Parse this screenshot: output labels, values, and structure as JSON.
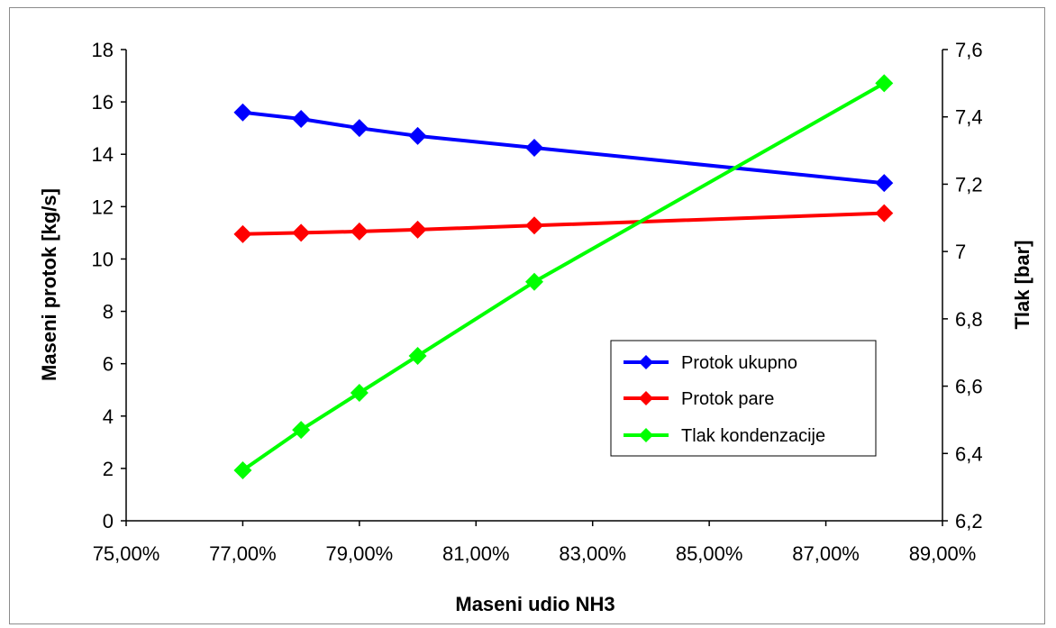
{
  "chart_data": {
    "type": "line",
    "title": "",
    "xlabel": "Maseni udio NH3",
    "ylabel_left": "Maseni protok [kg/s]",
    "ylabel_right": "Tlak [bar]",
    "xlim": [
      0.75,
      0.89
    ],
    "ylim_left": [
      0,
      18
    ],
    "ylim_right": [
      6.2,
      7.6
    ],
    "x_ticks": [
      "75,00%",
      "77,00%",
      "79,00%",
      "81,00%",
      "83,00%",
      "85,00%",
      "87,00%",
      "89,00%"
    ],
    "y_left_ticks": [
      "0",
      "2",
      "4",
      "6",
      "8",
      "10",
      "12",
      "14",
      "16",
      "18"
    ],
    "y_right_ticks": [
      "6,2",
      "6,4",
      "6,6",
      "6,8",
      "7",
      "7,2",
      "7,4",
      "7,6"
    ],
    "grid": false,
    "legend_position": "lower-right",
    "x": [
      0.77,
      0.78,
      0.79,
      0.8,
      0.82,
      0.88
    ],
    "series": [
      {
        "name": "Protok ukupno",
        "axis": "left",
        "color": "#0000ff",
        "marker": "diamond",
        "values": [
          15.6,
          15.35,
          15.0,
          14.7,
          14.25,
          12.9
        ]
      },
      {
        "name": "Protok pare",
        "axis": "left",
        "color": "#ff0000",
        "marker": "diamond",
        "values": [
          10.95,
          11.0,
          11.05,
          11.12,
          11.28,
          11.75
        ]
      },
      {
        "name": "Tlak kondenzacije",
        "axis": "right",
        "color": "#00ff00",
        "marker": "diamond",
        "values": [
          6.35,
          6.47,
          6.58,
          6.69,
          6.91,
          7.5
        ]
      }
    ]
  }
}
